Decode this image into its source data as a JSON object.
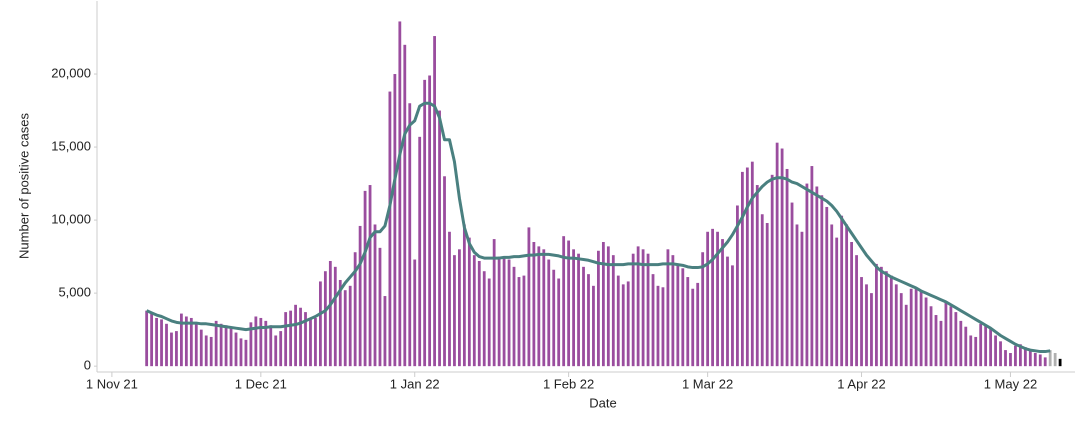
{
  "chart_data": {
    "type": "bar",
    "x_label": "Date",
    "y_label": "Number of positive cases",
    "x": [
      "2021-11-08",
      "2021-11-09",
      "2021-11-10",
      "2021-11-11",
      "2021-11-12",
      "2021-11-13",
      "2021-11-14",
      "2021-11-15",
      "2021-11-16",
      "2021-11-17",
      "2021-11-18",
      "2021-11-19",
      "2021-11-20",
      "2021-11-21",
      "2021-11-22",
      "2021-11-23",
      "2021-11-24",
      "2021-11-25",
      "2021-11-26",
      "2021-11-27",
      "2021-11-28",
      "2021-11-29",
      "2021-11-30",
      "2021-12-01",
      "2021-12-02",
      "2021-12-03",
      "2021-12-04",
      "2021-12-05",
      "2021-12-06",
      "2021-12-07",
      "2021-12-08",
      "2021-12-09",
      "2021-12-10",
      "2021-12-11",
      "2021-12-12",
      "2021-12-13",
      "2021-12-14",
      "2021-12-15",
      "2021-12-16",
      "2021-12-17",
      "2021-12-18",
      "2021-12-19",
      "2021-12-20",
      "2021-12-21",
      "2021-12-22",
      "2021-12-23",
      "2021-12-24",
      "2021-12-25",
      "2021-12-26",
      "2021-12-27",
      "2021-12-28",
      "2021-12-29",
      "2021-12-30",
      "2021-12-31",
      "2022-01-01",
      "2022-01-02",
      "2022-01-03",
      "2022-01-04",
      "2022-01-05",
      "2022-01-06",
      "2022-01-07",
      "2022-01-08",
      "2022-01-09",
      "2022-01-10",
      "2022-01-11",
      "2022-01-12",
      "2022-01-13",
      "2022-01-14",
      "2022-01-15",
      "2022-01-16",
      "2022-01-17",
      "2022-01-18",
      "2022-01-19",
      "2022-01-20",
      "2022-01-21",
      "2022-01-22",
      "2022-01-23",
      "2022-01-24",
      "2022-01-25",
      "2022-01-26",
      "2022-01-27",
      "2022-01-28",
      "2022-01-29",
      "2022-01-30",
      "2022-01-31",
      "2022-02-01",
      "2022-02-02",
      "2022-02-03",
      "2022-02-04",
      "2022-02-05",
      "2022-02-06",
      "2022-02-07",
      "2022-02-08",
      "2022-02-09",
      "2022-02-10",
      "2022-02-11",
      "2022-02-12",
      "2022-02-13",
      "2022-02-14",
      "2022-02-15",
      "2022-02-16",
      "2022-02-17",
      "2022-02-18",
      "2022-02-19",
      "2022-02-20",
      "2022-02-21",
      "2022-02-22",
      "2022-02-23",
      "2022-02-24",
      "2022-02-25",
      "2022-02-26",
      "2022-02-27",
      "2022-02-28",
      "2022-03-01",
      "2022-03-02",
      "2022-03-03",
      "2022-03-04",
      "2022-03-05",
      "2022-03-06",
      "2022-03-07",
      "2022-03-08",
      "2022-03-09",
      "2022-03-10",
      "2022-03-11",
      "2022-03-12",
      "2022-03-13",
      "2022-03-14",
      "2022-03-15",
      "2022-03-16",
      "2022-03-17",
      "2022-03-18",
      "2022-03-19",
      "2022-03-20",
      "2022-03-21",
      "2022-03-22",
      "2022-03-23",
      "2022-03-24",
      "2022-03-25",
      "2022-03-26",
      "2022-03-27",
      "2022-03-28",
      "2022-03-29",
      "2022-03-30",
      "2022-03-31",
      "2022-04-01",
      "2022-04-02",
      "2022-04-03",
      "2022-04-04",
      "2022-04-05",
      "2022-04-06",
      "2022-04-07",
      "2022-04-08",
      "2022-04-09",
      "2022-04-10",
      "2022-04-11",
      "2022-04-12",
      "2022-04-13",
      "2022-04-14",
      "2022-04-15",
      "2022-04-16",
      "2022-04-17",
      "2022-04-18",
      "2022-04-19",
      "2022-04-20",
      "2022-04-21",
      "2022-04-22",
      "2022-04-23",
      "2022-04-24",
      "2022-04-25",
      "2022-04-26",
      "2022-04-27",
      "2022-04-28",
      "2022-04-29",
      "2022-04-30",
      "2022-05-01",
      "2022-05-02",
      "2022-05-03",
      "2022-05-04",
      "2022-05-05",
      "2022-05-06",
      "2022-05-07",
      "2022-05-08",
      "2022-05-09",
      "2022-05-10",
      "2022-05-11"
    ],
    "series": [
      {
        "type": "bar",
        "values": [
          3800,
          3600,
          3300,
          3200,
          2900,
          2300,
          2400,
          3600,
          3400,
          3300,
          3000,
          2500,
          2100,
          2000,
          3100,
          2900,
          2800,
          2600,
          2300,
          1900,
          1800,
          3000,
          3400,
          3300,
          3100,
          2800,
          2100,
          2400,
          3700,
          3800,
          4200,
          4000,
          3700,
          3200,
          3300,
          5800,
          6500,
          7200,
          6800,
          5900,
          5200,
          5500,
          7800,
          9600,
          12000,
          12400,
          9700,
          8100,
          4800,
          18800,
          20000,
          23600,
          22000,
          18000,
          7300,
          15700,
          19600,
          19900,
          22600,
          17500,
          13000,
          9200,
          7600,
          8000,
          9700,
          8800,
          7600,
          7200,
          6500,
          6000,
          8700,
          7500,
          7400,
          7300,
          6800,
          6100,
          6200,
          9500,
          8500,
          8200,
          8000,
          7300,
          6600,
          6000,
          8900,
          8600,
          8000,
          7700,
          6800,
          6300,
          5500,
          7900,
          8500,
          8200,
          7600,
          6200,
          5600,
          5800,
          7700,
          8200,
          8000,
          7700,
          6300,
          5500,
          5400,
          8000,
          7600,
          7000,
          6700,
          6100,
          5300,
          5700,
          7800,
          9200,
          9400,
          9200,
          8700,
          7500,
          6900,
          11000,
          13300,
          13600,
          14000,
          12400,
          10400,
          9800,
          13100,
          15300,
          14900,
          13500,
          11200,
          9700,
          9200,
          12500,
          13700,
          12300,
          11700,
          10900,
          9700,
          8800,
          10300,
          9700,
          8500,
          7600,
          6100,
          5600,
          5000,
          7000,
          6800,
          6500,
          6200,
          5600,
          5000,
          4200,
          5300,
          5400,
          5100,
          4700,
          4100,
          3500,
          3100,
          4400,
          4100,
          3700,
          3100,
          2700,
          2100,
          2000,
          2900,
          2800,
          2600,
          2100,
          1700,
          1100,
          900,
          1400,
          1500,
          1300,
          1100,
          900,
          800,
          600,
          1100,
          900,
          500
        ],
        "colors": [
          "#9a4d9e",
          "#9a4d9e",
          "#9a4d9e",
          "#9a4d9e",
          "#9a4d9e",
          "#9a4d9e",
          "#9a4d9e",
          "#9a4d9e",
          "#9a4d9e",
          "#9a4d9e",
          "#9a4d9e",
          "#9a4d9e",
          "#9a4d9e",
          "#9a4d9e",
          "#9a4d9e",
          "#9a4d9e",
          "#9a4d9e",
          "#9a4d9e",
          "#9a4d9e",
          "#9a4d9e",
          "#9a4d9e",
          "#9a4d9e",
          "#9a4d9e",
          "#9a4d9e",
          "#9a4d9e",
          "#9a4d9e",
          "#9a4d9e",
          "#9a4d9e",
          "#9a4d9e",
          "#9a4d9e",
          "#9a4d9e",
          "#9a4d9e",
          "#9a4d9e",
          "#9a4d9e",
          "#9a4d9e",
          "#9a4d9e",
          "#9a4d9e",
          "#9a4d9e",
          "#9a4d9e",
          "#9a4d9e",
          "#9a4d9e",
          "#9a4d9e",
          "#9a4d9e",
          "#9a4d9e",
          "#9a4d9e",
          "#9a4d9e",
          "#9a4d9e",
          "#9a4d9e",
          "#9a4d9e",
          "#9a4d9e",
          "#9a4d9e",
          "#9a4d9e",
          "#9a4d9e",
          "#9a4d9e",
          "#9a4d9e",
          "#9a4d9e",
          "#9a4d9e",
          "#9a4d9e",
          "#9a4d9e",
          "#9a4d9e",
          "#9a4d9e",
          "#9a4d9e",
          "#9a4d9e",
          "#9a4d9e",
          "#9a4d9e",
          "#9a4d9e",
          "#9a4d9e",
          "#9a4d9e",
          "#9a4d9e",
          "#9a4d9e",
          "#9a4d9e",
          "#9a4d9e",
          "#9a4d9e",
          "#9a4d9e",
          "#9a4d9e",
          "#9a4d9e",
          "#9a4d9e",
          "#9a4d9e",
          "#9a4d9e",
          "#9a4d9e",
          "#9a4d9e",
          "#9a4d9e",
          "#9a4d9e",
          "#9a4d9e",
          "#9a4d9e",
          "#9a4d9e",
          "#9a4d9e",
          "#9a4d9e",
          "#9a4d9e",
          "#9a4d9e",
          "#9a4d9e",
          "#9a4d9e",
          "#9a4d9e",
          "#9a4d9e",
          "#9a4d9e",
          "#9a4d9e",
          "#9a4d9e",
          "#9a4d9e",
          "#9a4d9e",
          "#9a4d9e",
          "#9a4d9e",
          "#9a4d9e",
          "#9a4d9e",
          "#9a4d9e",
          "#9a4d9e",
          "#9a4d9e",
          "#9a4d9e",
          "#9a4d9e",
          "#9a4d9e",
          "#9a4d9e",
          "#9a4d9e",
          "#9a4d9e",
          "#9a4d9e",
          "#9a4d9e",
          "#9a4d9e",
          "#9a4d9e",
          "#9a4d9e",
          "#9a4d9e",
          "#9a4d9e",
          "#9a4d9e",
          "#9a4d9e",
          "#9a4d9e",
          "#9a4d9e",
          "#9a4d9e",
          "#9a4d9e",
          "#9a4d9e",
          "#9a4d9e",
          "#9a4d9e",
          "#9a4d9e",
          "#9a4d9e",
          "#9a4d9e",
          "#9a4d9e",
          "#9a4d9e",
          "#9a4d9e",
          "#9a4d9e",
          "#9a4d9e",
          "#9a4d9e",
          "#9a4d9e",
          "#9a4d9e",
          "#9a4d9e",
          "#9a4d9e",
          "#9a4d9e",
          "#9a4d9e",
          "#9a4d9e",
          "#9a4d9e",
          "#9a4d9e",
          "#9a4d9e",
          "#9a4d9e",
          "#9a4d9e",
          "#9a4d9e",
          "#9a4d9e",
          "#9a4d9e",
          "#9a4d9e",
          "#9a4d9e",
          "#9a4d9e",
          "#9a4d9e",
          "#9a4d9e",
          "#9a4d9e",
          "#9a4d9e",
          "#9a4d9e",
          "#9a4d9e",
          "#9a4d9e",
          "#9a4d9e",
          "#9a4d9e",
          "#9a4d9e",
          "#9a4d9e",
          "#9a4d9e",
          "#9a4d9e",
          "#9a4d9e",
          "#9a4d9e",
          "#9a4d9e",
          "#9a4d9e",
          "#9a4d9e",
          "#9a4d9e",
          "#9a4d9e",
          "#9a4d9e",
          "#9a4d9e",
          "#9a4d9e",
          "#9a4d9e",
          "#9a4d9e",
          "#9a4d9e",
          "#9a4d9e",
          "#b0b0b0",
          "#b0b0b0"
        ]
      },
      {
        "type": "line",
        "color": "#4a8080",
        "values": [
          3800,
          3650,
          3500,
          3400,
          3250,
          3100,
          3000,
          2950,
          2950,
          2950,
          2950,
          2900,
          2900,
          2850,
          2800,
          2750,
          2700,
          2650,
          2600,
          2550,
          2500,
          2550,
          2600,
          2650,
          2650,
          2700,
          2700,
          2700,
          2750,
          2800,
          2850,
          2950,
          3100,
          3250,
          3400,
          3600,
          3800,
          4200,
          4700,
          5200,
          5700,
          6100,
          6500,
          7000,
          7800,
          8800,
          9200,
          9200,
          9600,
          11000,
          12800,
          14500,
          15900,
          16500,
          16800,
          17800,
          18000,
          18000,
          17800,
          17000,
          15500,
          15500,
          14000,
          11500,
          9500,
          8400,
          7800,
          7500,
          7400,
          7400,
          7400,
          7400,
          7450,
          7450,
          7500,
          7500,
          7550,
          7600,
          7600,
          7650,
          7650,
          7650,
          7600,
          7550,
          7450,
          7400,
          7400,
          7350,
          7300,
          7250,
          7150,
          7050,
          7000,
          6950,
          6950,
          6950,
          6950,
          7000,
          7000,
          7000,
          6950,
          6950,
          6950,
          6950,
          7000,
          7000,
          7000,
          6950,
          6900,
          6800,
          6750,
          6750,
          6800,
          7000,
          7300,
          7700,
          8100,
          8500,
          9000,
          9600,
          10200,
          10900,
          11500,
          11900,
          12300,
          12600,
          12800,
          12900,
          12900,
          12800,
          12600,
          12500,
          12300,
          12100,
          11900,
          11700,
          11500,
          11300,
          11000,
          10600,
          10100,
          9600,
          9100,
          8600,
          8100,
          7600,
          7200,
          6800,
          6500,
          6300,
          6100,
          5950,
          5800,
          5650,
          5500,
          5350,
          5150,
          5000,
          4850,
          4700,
          4550,
          4400,
          4200,
          4000,
          3800,
          3600,
          3400,
          3200,
          3000,
          2800,
          2600,
          2350,
          2100,
          1900,
          1700,
          1500,
          1350,
          1200,
          1100,
          1050,
          1000,
          1000,
          1050,
          null,
          null
        ]
      }
    ],
    "xlim": [
      "2021-10-29",
      "2022-05-14"
    ],
    "xticks": [
      {
        "value": "2021-11-01",
        "label": "1 Nov 21"
      },
      {
        "value": "2021-12-01",
        "label": "1 Dec 21"
      },
      {
        "value": "2022-01-01",
        "label": "1 Jan 22"
      },
      {
        "value": "2022-02-01",
        "label": "1 Feb 22"
      },
      {
        "value": "2022-03-01",
        "label": "1 Mar 22"
      },
      {
        "value": "2022-04-01",
        "label": "1 Apr 22"
      },
      {
        "value": "2022-05-01",
        "label": "1 May 22"
      }
    ],
    "ylim": [
      -400,
      25000
    ],
    "yticks": [
      0,
      {
        "value": 5000,
        "label": "5,000"
      },
      {
        "value": 10000,
        "label": "10,000"
      },
      {
        "value": 15000,
        "label": "15,000"
      },
      {
        "value": 20000,
        "label": "20,000"
      }
    ],
    "grid": false
  }
}
